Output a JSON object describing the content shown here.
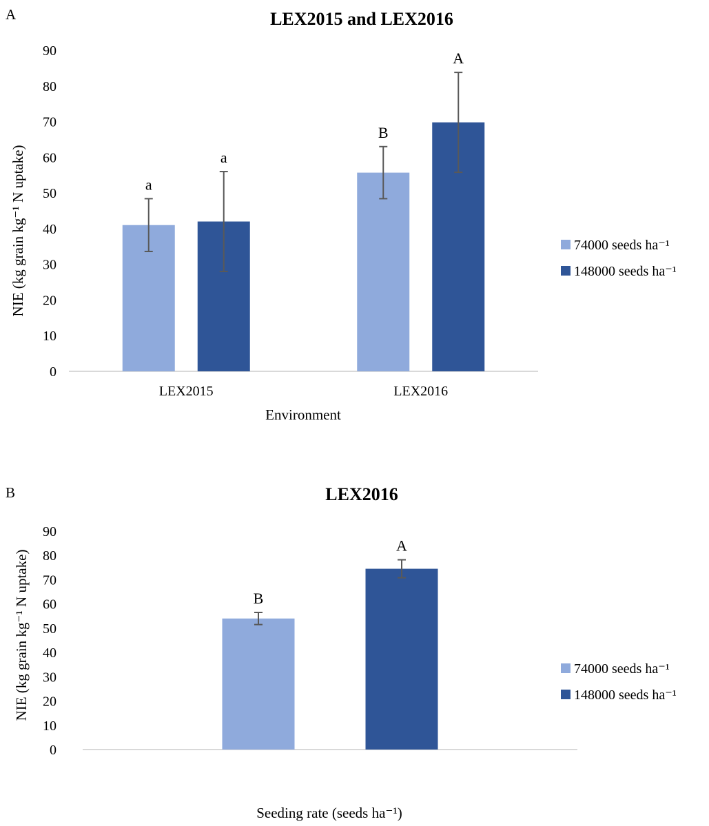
{
  "colors": {
    "light": "#8faadc",
    "dark": "#2f5597",
    "axis": "#d9d9d9",
    "errorbar": "#595959"
  },
  "chart_data": [
    {
      "panel_label": "A",
      "type": "bar",
      "title": "LEX2015 and LEX2016",
      "xlabel": "Environment",
      "ylabel": "NIE (kg grain kg⁻¹ N uptake)",
      "ylim": [
        0,
        90
      ],
      "yticks": [
        "0",
        "10",
        "20",
        "30",
        "40",
        "50",
        "60",
        "70",
        "80",
        "90"
      ],
      "categories": [
        "LEX2015",
        "LEX2016"
      ],
      "series": [
        {
          "name": "74000 seeds ha⁻¹",
          "color": "#8faadc",
          "values": [
            41,
            55.7
          ],
          "errors": [
            7.4,
            7.3
          ],
          "letters": [
            "a",
            "B"
          ]
        },
        {
          "name": "148000 seeds ha⁻¹",
          "color": "#2f5597",
          "values": [
            42,
            69.8
          ],
          "errors": [
            14,
            14
          ],
          "letters": [
            "a",
            "A"
          ]
        }
      ],
      "legend_position": "right",
      "grid": false
    },
    {
      "panel_label": "B",
      "type": "bar",
      "title": "LEX2016",
      "xlabel": "Seeding rate (seeds ha⁻¹)",
      "ylabel": "NIE (kg grain kg⁻¹ N uptake)",
      "ylim": [
        0,
        90
      ],
      "yticks": [
        "0",
        "10",
        "20",
        "30",
        "40",
        "50",
        "60",
        "70",
        "80",
        "90"
      ],
      "categories": [
        ""
      ],
      "series": [
        {
          "name": "74000 seeds ha⁻¹",
          "color": "#8faadc",
          "values": [
            54
          ],
          "errors": [
            2.5
          ],
          "letters": [
            "B"
          ]
        },
        {
          "name": "148000 seeds ha⁻¹",
          "color": "#2f5597",
          "values": [
            74.5
          ],
          "errors": [
            3.7
          ],
          "letters": [
            "A"
          ]
        }
      ],
      "legend_position": "right",
      "grid": false
    }
  ]
}
